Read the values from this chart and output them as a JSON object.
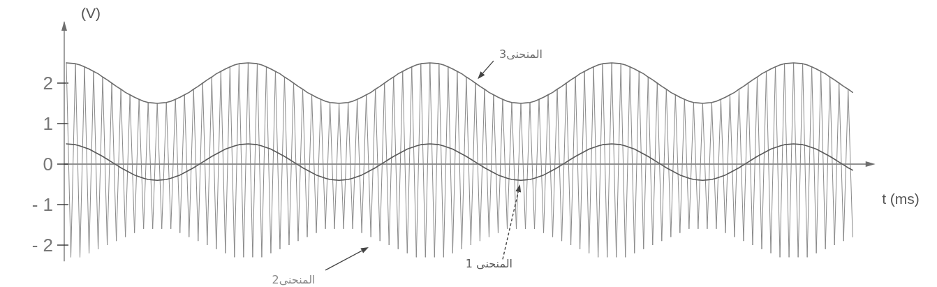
{
  "chart_data": {
    "type": "line",
    "xlabel": "t (ms)",
    "ylabel": "(V)",
    "categories": [
      null,
      null,
      null,
      null,
      null,
      null,
      null,
      null,
      null,
      null,
      null,
      null,
      null,
      null,
      null,
      null,
      null,
      null,
      null,
      null,
      null,
      null,
      null,
      null,
      null,
      null,
      null,
      null,
      null,
      null,
      null,
      null,
      null,
      null,
      null,
      null,
      null,
      null,
      null,
      null,
      null,
      null,
      null,
      null,
      null,
      null,
      null,
      null,
      null,
      null,
      null,
      null,
      null,
      null,
      null,
      null,
      null,
      null,
      null,
      null,
      null,
      null,
      null,
      null,
      null,
      null,
      null,
      null,
      null,
      null,
      null,
      null,
      null,
      null,
      null,
      null,
      null,
      null,
      null,
      null,
      null,
      null,
      null,
      null,
      null,
      null,
      null,
      null,
      null,
      null,
      null,
      null,
      null,
      null,
      null,
      null,
      null,
      null,
      null,
      null,
      null,
      null,
      null,
      null,
      null,
      null,
      null,
      null,
      null,
      null,
      null,
      null,
      null,
      null,
      null,
      null,
      null,
      null,
      null,
      null,
      null,
      null,
      null,
      null,
      null,
      null,
      null,
      null,
      null,
      null,
      null,
      null,
      null,
      null,
      null,
      null,
      null,
      null,
      null,
      null,
      null,
      null,
      null,
      null,
      null,
      null,
      null,
      null,
      null,
      null,
      null,
      null,
      null,
      null,
      null,
      null,
      null,
      null,
      null,
      null,
      null,
      null,
      null,
      null,
      null,
      null,
      null,
      null,
      null,
      null,
      null,
      null,
      null,
      null
    ],
    "series": [
      {
        "name": "المنحنى 1",
        "color": "#5a5a5a",
        "values": [
          0.5,
          0.49,
          0.48,
          0.45,
          0.41,
          0.37,
          0.31,
          0.25,
          0.19,
          0.12,
          0.05,
          -0.02,
          -0.09,
          -0.15,
          -0.21,
          -0.27,
          -0.31,
          -0.35,
          -0.38,
          -0.39,
          -0.4,
          -0.39,
          -0.38,
          -0.35,
          -0.31,
          -0.27,
          -0.21,
          -0.15,
          -0.09,
          -0.02,
          0.05,
          0.12,
          0.19,
          0.25,
          0.31,
          0.37,
          0.41,
          0.45,
          0.48,
          0.49,
          0.5,
          0.49,
          0.48,
          0.45,
          0.41,
          0.37,
          0.31,
          0.25,
          0.19,
          0.12,
          0.05,
          -0.02,
          -0.09,
          -0.15,
          -0.21,
          -0.27,
          -0.31,
          -0.35,
          -0.38,
          -0.39,
          -0.4,
          -0.39,
          -0.38,
          -0.35,
          -0.31,
          -0.27,
          -0.21,
          -0.15,
          -0.09,
          -0.02,
          0.05,
          0.12,
          0.19,
          0.25,
          0.31,
          0.37,
          0.41,
          0.45,
          0.48,
          0.49,
          0.5,
          0.49,
          0.48,
          0.45,
          0.41,
          0.37,
          0.31,
          0.25,
          0.19,
          0.12,
          0.05,
          -0.02,
          -0.09,
          -0.15,
          -0.21,
          -0.27,
          -0.31,
          -0.35,
          -0.38,
          -0.39,
          -0.4,
          -0.39,
          -0.38,
          -0.35,
          -0.31,
          -0.27,
          -0.21,
          -0.15,
          -0.09,
          -0.02,
          0.05,
          0.12,
          0.19,
          0.25,
          0.31,
          0.37,
          0.41,
          0.45,
          0.48,
          0.49,
          0.5,
          0.49,
          0.48,
          0.45,
          0.41,
          0.37,
          0.31,
          0.25,
          0.19,
          0.12,
          0.05,
          -0.02,
          -0.09,
          -0.15,
          -0.21,
          -0.27,
          -0.31,
          -0.35,
          -0.38,
          -0.39,
          -0.4,
          -0.39,
          -0.38,
          -0.35,
          -0.31,
          -0.27,
          -0.21,
          -0.15,
          -0.09,
          -0.02,
          0.05,
          0.12,
          0.19,
          0.25,
          0.31,
          0.37,
          0.41,
          0.45,
          0.48,
          0.49,
          0.5,
          0.49,
          0.48,
          0.45,
          0.41,
          0.37,
          0.31,
          0.25,
          0.19,
          0.12,
          0.05,
          -0.02,
          -0.09,
          -0.15
        ]
      },
      {
        "name": "المنحنى2",
        "color": "#8a8a8a",
        "values": [
          2.5,
          -2.3,
          2.48,
          -2.3,
          2.4,
          -2.2,
          2.29,
          -2.1,
          2.15,
          -2.0,
          2.0,
          -1.9,
          1.85,
          -1.8,
          1.71,
          -1.7,
          1.6,
          -1.6,
          1.52,
          -1.6,
          1.5,
          -1.6,
          1.52,
          -1.6,
          1.6,
          -1.7,
          1.71,
          -1.8,
          1.85,
          -1.9,
          2.0,
          -2.0,
          2.15,
          -2.1,
          2.29,
          -2.2,
          2.4,
          -2.3,
          2.48,
          -2.3,
          2.5,
          -2.3,
          2.48,
          -2.3,
          2.4,
          -2.2,
          2.29,
          -2.1,
          2.15,
          -2.0,
          2.0,
          -1.9,
          1.85,
          -1.8,
          1.71,
          -1.7,
          1.6,
          -1.6,
          1.52,
          -1.6,
          1.5,
          -1.6,
          1.52,
          -1.6,
          1.6,
          -1.7,
          1.71,
          -1.8,
          1.85,
          -1.9,
          2.0,
          -2.0,
          2.15,
          -2.1,
          2.29,
          -2.2,
          2.4,
          -2.3,
          2.48,
          -2.3,
          2.5,
          -2.3,
          2.48,
          -2.3,
          2.4,
          -2.2,
          2.29,
          -2.1,
          2.15,
          -2.0,
          2.0,
          -1.9,
          1.85,
          -1.8,
          1.71,
          -1.7,
          1.6,
          -1.6,
          1.52,
          -1.6,
          1.5,
          -1.6,
          1.52,
          -1.6,
          1.6,
          -1.7,
          1.71,
          -1.8,
          1.85,
          -1.9,
          2.0,
          -2.0,
          2.15,
          -2.1,
          2.29,
          -2.2,
          2.4,
          -2.3,
          2.48,
          -2.3,
          2.5,
          -2.3,
          2.48,
          -2.3,
          2.4,
          -2.2,
          2.29,
          -2.1,
          2.15,
          -2.0,
          2.0,
          -1.9,
          1.85,
          -1.8,
          1.71,
          -1.7,
          1.6,
          -1.6,
          1.52,
          -1.6,
          1.5,
          -1.6,
          1.52,
          -1.6,
          1.6,
          -1.7,
          1.71,
          -1.8,
          1.85,
          -1.9,
          2.0,
          -2.0,
          2.15,
          -2.1,
          2.29,
          -2.2,
          2.4,
          -2.3,
          2.48,
          -2.3,
          2.5,
          -2.3,
          2.48,
          -2.3,
          2.4,
          -2.2,
          2.29,
          -2.1,
          2.15,
          -2.0,
          2.0,
          -1.9,
          1.85,
          -1.8
        ]
      },
      {
        "name": "المنحنى3",
        "color": "#6e6e6e",
        "values": [
          2.5,
          2.49,
          2.48,
          2.45,
          2.4,
          2.35,
          2.29,
          2.23,
          2.15,
          2.08,
          2.0,
          1.92,
          1.85,
          1.77,
          1.71,
          1.65,
          1.6,
          1.55,
          1.52,
          1.51,
          1.5,
          1.51,
          1.52,
          1.55,
          1.6,
          1.65,
          1.71,
          1.77,
          1.85,
          1.92,
          2.0,
          2.08,
          2.15,
          2.23,
          2.29,
          2.35,
          2.4,
          2.45,
          2.48,
          2.49,
          2.5,
          2.49,
          2.48,
          2.45,
          2.4,
          2.35,
          2.29,
          2.23,
          2.15,
          2.08,
          2.0,
          1.92,
          1.85,
          1.77,
          1.71,
          1.65,
          1.6,
          1.55,
          1.52,
          1.51,
          1.5,
          1.51,
          1.52,
          1.55,
          1.6,
          1.65,
          1.71,
          1.77,
          1.85,
          1.92,
          2.0,
          2.08,
          2.15,
          2.23,
          2.29,
          2.35,
          2.4,
          2.45,
          2.48,
          2.49,
          2.5,
          2.49,
          2.48,
          2.45,
          2.4,
          2.35,
          2.29,
          2.23,
          2.15,
          2.08,
          2.0,
          1.92,
          1.85,
          1.77,
          1.71,
          1.65,
          1.6,
          1.55,
          1.52,
          1.51,
          1.5,
          1.51,
          1.52,
          1.55,
          1.6,
          1.65,
          1.71,
          1.77,
          1.85,
          1.92,
          2.0,
          2.08,
          2.15,
          2.23,
          2.29,
          2.35,
          2.4,
          2.45,
          2.48,
          2.49,
          2.5,
          2.49,
          2.48,
          2.45,
          2.4,
          2.35,
          2.29,
          2.23,
          2.15,
          2.08,
          2.0,
          1.92,
          1.85,
          1.77,
          1.71,
          1.65,
          1.6,
          1.55,
          1.52,
          1.51,
          1.5,
          1.51,
          1.52,
          1.55,
          1.6,
          1.65,
          1.71,
          1.77,
          1.85,
          1.92,
          2.0,
          2.08,
          2.15,
          2.23,
          2.29,
          2.35,
          2.4,
          2.45,
          2.48,
          2.49,
          2.5,
          2.49,
          2.48,
          2.45,
          2.4,
          2.35,
          2.29,
          2.23,
          2.15,
          2.08,
          2.0,
          1.92,
          1.85,
          1.77
        ]
      }
    ],
    "ylim": [
      -2.4,
      3.5
    ],
    "yticks": [
      {
        "value": -2,
        "label": "- 2"
      },
      {
        "value": -1,
        "label": "- 1"
      },
      0,
      1,
      2
    ],
    "tick_labels": "y"
  }
}
